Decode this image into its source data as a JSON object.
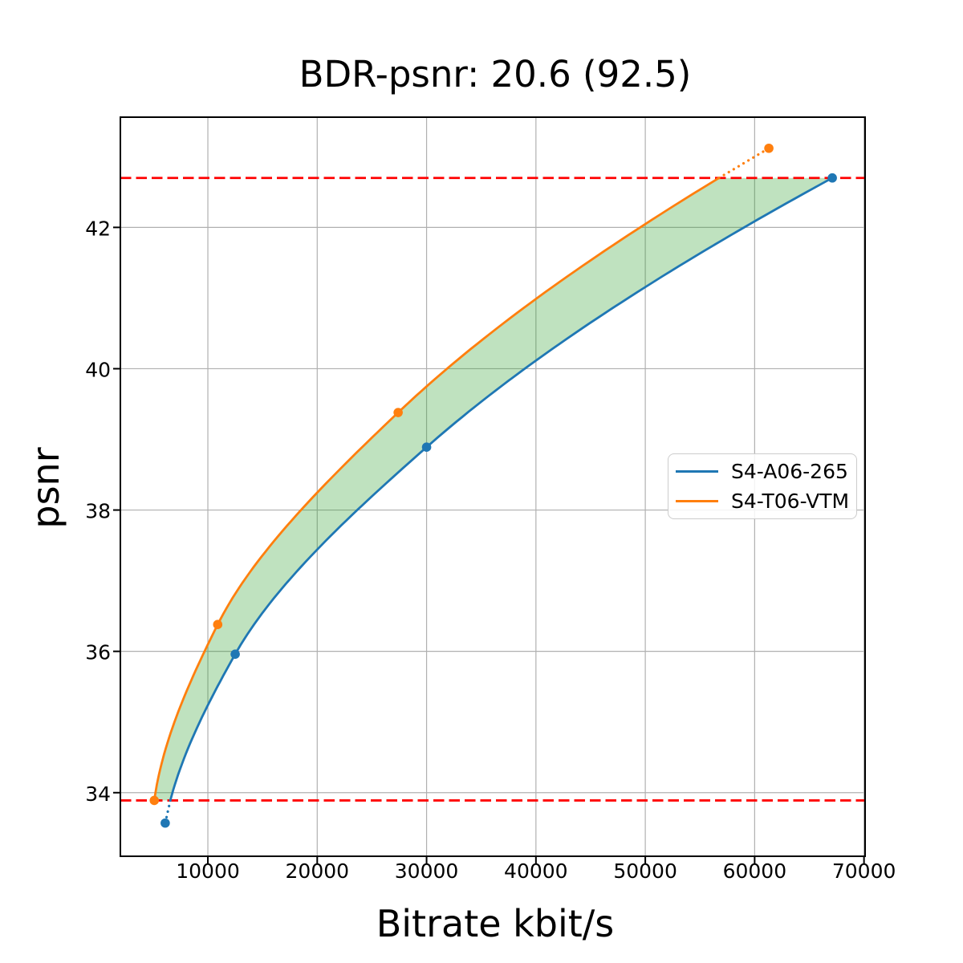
{
  "figure": {
    "title": "BDR-psnr: 20.6 (92.5)",
    "xlabel": "Bitrate kbit/s",
    "ylabel": "psnr"
  },
  "legend": {
    "items": [
      {
        "label": "S4-A06-265",
        "color": "#1f77b4"
      },
      {
        "label": "S4-T06-VTM",
        "color": "#ff7f0e"
      }
    ]
  },
  "chart_data": {
    "type": "line",
    "title": "BDR-psnr: 20.6 (92.5)",
    "xlabel": "Bitrate kbit/s",
    "ylabel": "psnr",
    "xlim": [
      2000,
      70100
    ],
    "ylim": [
      33.1,
      43.56
    ],
    "xticks": [
      10000,
      20000,
      30000,
      40000,
      50000,
      60000,
      70000
    ],
    "yticks": [
      34,
      36,
      38,
      40,
      42
    ],
    "grid": true,
    "grid_color": "#b0b0b0",
    "legend_position": "right-center",
    "series": [
      {
        "name": "S4-A06-265",
        "color": "#1f77b4",
        "bitrate_kbit_s": [
          6100,
          12500,
          30000,
          67100
        ],
        "psnr": [
          33.57,
          35.96,
          38.89,
          42.7
        ]
      },
      {
        "name": "S4-T06-VTM",
        "color": "#ff7f0e",
        "bitrate_kbit_s": [
          5100,
          10900,
          27400,
          61300
        ],
        "psnr": [
          33.89,
          36.38,
          39.38,
          43.12
        ]
      }
    ],
    "overlap_psnr_range": [
      33.89,
      42.7
    ],
    "threshold_lines": {
      "values": [
        33.89,
        42.7
      ],
      "color": "#ff0000",
      "style": "dashed"
    },
    "fill_between": {
      "color": "#2ca02c",
      "alpha": 0.3
    }
  }
}
